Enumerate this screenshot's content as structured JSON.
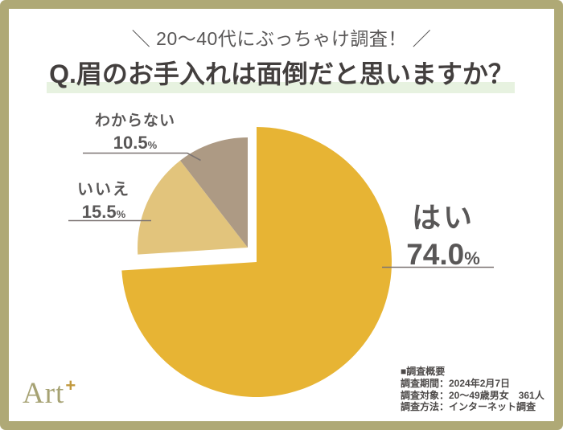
{
  "frame": {
    "border_color": "#afa976",
    "background": "#ffffff"
  },
  "header": {
    "tagline": "＼ 20〜40代にぶっちゃけ調査！ ／",
    "question": "Q.眉のお手入れは面倒だと思いますか？",
    "highlight_color": "#e7f2e0",
    "tagline_color": "#595757",
    "question_color": "#433f3e"
  },
  "chart_data": {
    "type": "pie",
    "title": "眉のお手入れは面倒だと思いますか？",
    "direction": "clockwise",
    "start_angle_deg": 0,
    "legend": "none",
    "leader_line_color": "#7c7472",
    "label_color": "#595757",
    "slices": [
      {
        "label": "はい",
        "value": 74.0,
        "display": "74.0",
        "unit": "%",
        "color": "#e7b434",
        "exploded": true
      },
      {
        "label": "いいえ",
        "value": 15.5,
        "display": "15.5",
        "unit": "%",
        "color": "#e2c47c",
        "exploded": false
      },
      {
        "label": "わからない",
        "value": 10.5,
        "display": "10.5",
        "unit": "%",
        "color": "#ad9a84",
        "exploded": false
      }
    ]
  },
  "footer": {
    "survey": {
      "heading": "■調査概要",
      "lines": [
        "調査期間：2024年2月7日",
        "調査対象：20〜49歳男女　361人",
        "調査方法：インターネット調査"
      ]
    },
    "logo": {
      "text": "Art",
      "plus": "+"
    }
  }
}
